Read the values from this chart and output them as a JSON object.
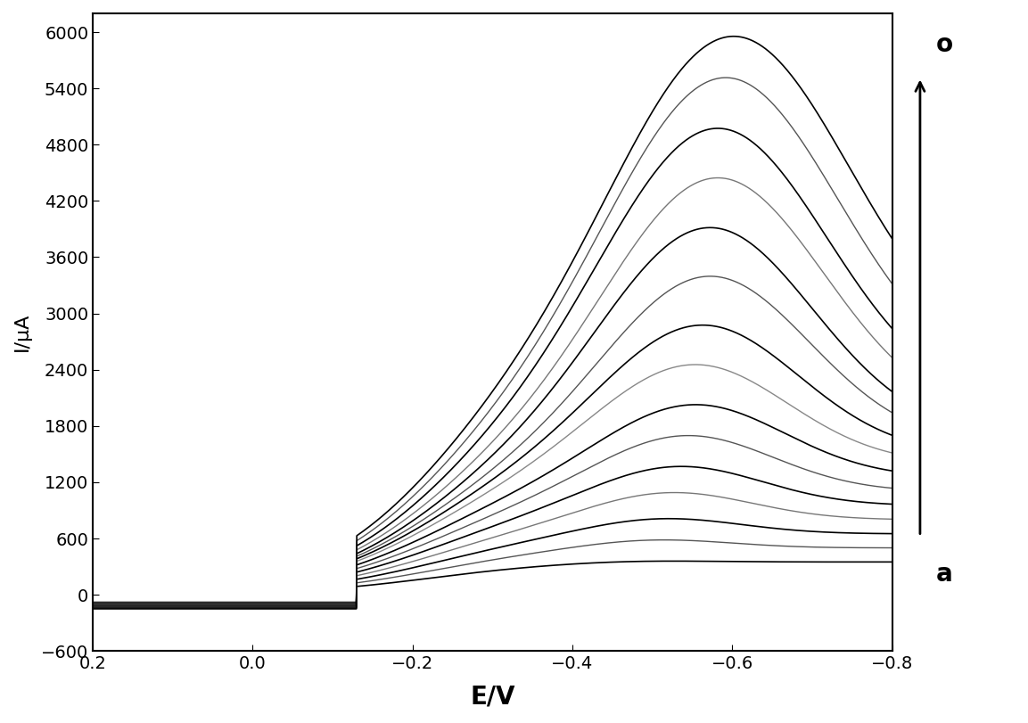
{
  "xlabel": "E/V",
  "ylabel": "I/μA",
  "xlim": [
    0.2,
    -0.8
  ],
  "ylim": [
    -600,
    6200
  ],
  "yticks": [
    -600,
    0,
    600,
    1200,
    1800,
    2400,
    3000,
    3600,
    4200,
    4800,
    5400,
    6000
  ],
  "xticks": [
    0.2,
    0.0,
    -0.2,
    -0.4,
    -0.6,
    -0.8
  ],
  "n_curves": 15,
  "label_a": "a",
  "label_o": "o",
  "background_color": "#ffffff",
  "xlabel_fontsize": 20,
  "ylabel_fontsize": 16,
  "tick_fontsize": 14,
  "peak_currents": [
    300,
    500,
    700,
    950,
    1200,
    1500,
    1800,
    2200,
    2600,
    3100,
    3600,
    4100,
    4600,
    5100,
    5500
  ],
  "end_currents": [
    350,
    500,
    650,
    800,
    950,
    1100,
    1250,
    1400,
    1500,
    1600,
    1700,
    1850,
    2000,
    2200,
    2400
  ],
  "peak_positions": [
    -0.48,
    -0.5,
    -0.51,
    -0.52,
    -0.53,
    -0.54,
    -0.55,
    -0.55,
    -0.56,
    -0.57,
    -0.57,
    -0.58,
    -0.58,
    -0.59,
    -0.6
  ],
  "colors": [
    "#000000",
    "#555555",
    "#000000",
    "#777777",
    "#000000",
    "#555555",
    "#000000",
    "#888888",
    "#000000",
    "#555555",
    "#000000",
    "#777777",
    "#000000",
    "#555555",
    "#000000"
  ]
}
